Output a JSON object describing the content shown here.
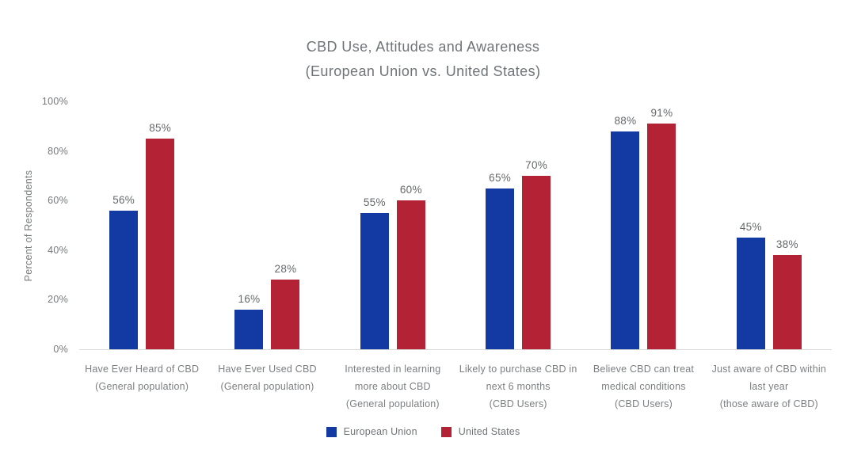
{
  "chart_data": {
    "type": "bar",
    "title_line1": "CBD Use, Attitudes and Awareness",
    "title_line2": "(European Union vs. United States)",
    "ylabel": "Percent of Respondents",
    "xlabel": "",
    "ylim": [
      0,
      100
    ],
    "ytick_labels": [
      "0%",
      "20%",
      "40%",
      "60%",
      "80%",
      "100%"
    ],
    "ytick_values": [
      0,
      20,
      40,
      60,
      80,
      100
    ],
    "grid": false,
    "legend_position": "bottom-center",
    "value_suffix": "%",
    "categories": [
      {
        "label": "Have Ever Heard of CBD (General population)",
        "lines": [
          "Have Ever Heard of CBD",
          "(General population)"
        ]
      },
      {
        "label": "Have Ever Used CBD (General population)",
        "lines": [
          "Have Ever Used CBD",
          "(General population)"
        ]
      },
      {
        "label": "Interested in learning more about CBD (General population)",
        "lines": [
          "Interested in learning",
          "more about CBD",
          "(General population)"
        ]
      },
      {
        "label": "Likely to purchase CBD in next 6 months (CBD Users)",
        "lines": [
          "Likely to purchase CBD in",
          "next 6 months",
          "(CBD Users)"
        ]
      },
      {
        "label": "Believe CBD can treat medical conditions (CBD Users)",
        "lines": [
          "Believe CBD can treat",
          "medical conditions",
          "(CBD Users)"
        ]
      },
      {
        "label": "Just aware of CBD within last year (those aware of CBD)",
        "lines": [
          "Just aware of CBD within",
          "last year",
          "(those aware of CBD)"
        ]
      }
    ],
    "series": [
      {
        "name": "European Union",
        "color": "#1339A3",
        "values": [
          56,
          16,
          55,
          65,
          88,
          45
        ]
      },
      {
        "name": "United States",
        "color": "#B42335",
        "values": [
          85,
          28,
          60,
          70,
          91,
          38
        ]
      }
    ]
  },
  "colors": {
    "eu_blue": "#1339A3",
    "us_red": "#B42335",
    "text_gray": "#6F7478",
    "axis_line": "#D9D9D9",
    "background": "#FFFFFF"
  }
}
